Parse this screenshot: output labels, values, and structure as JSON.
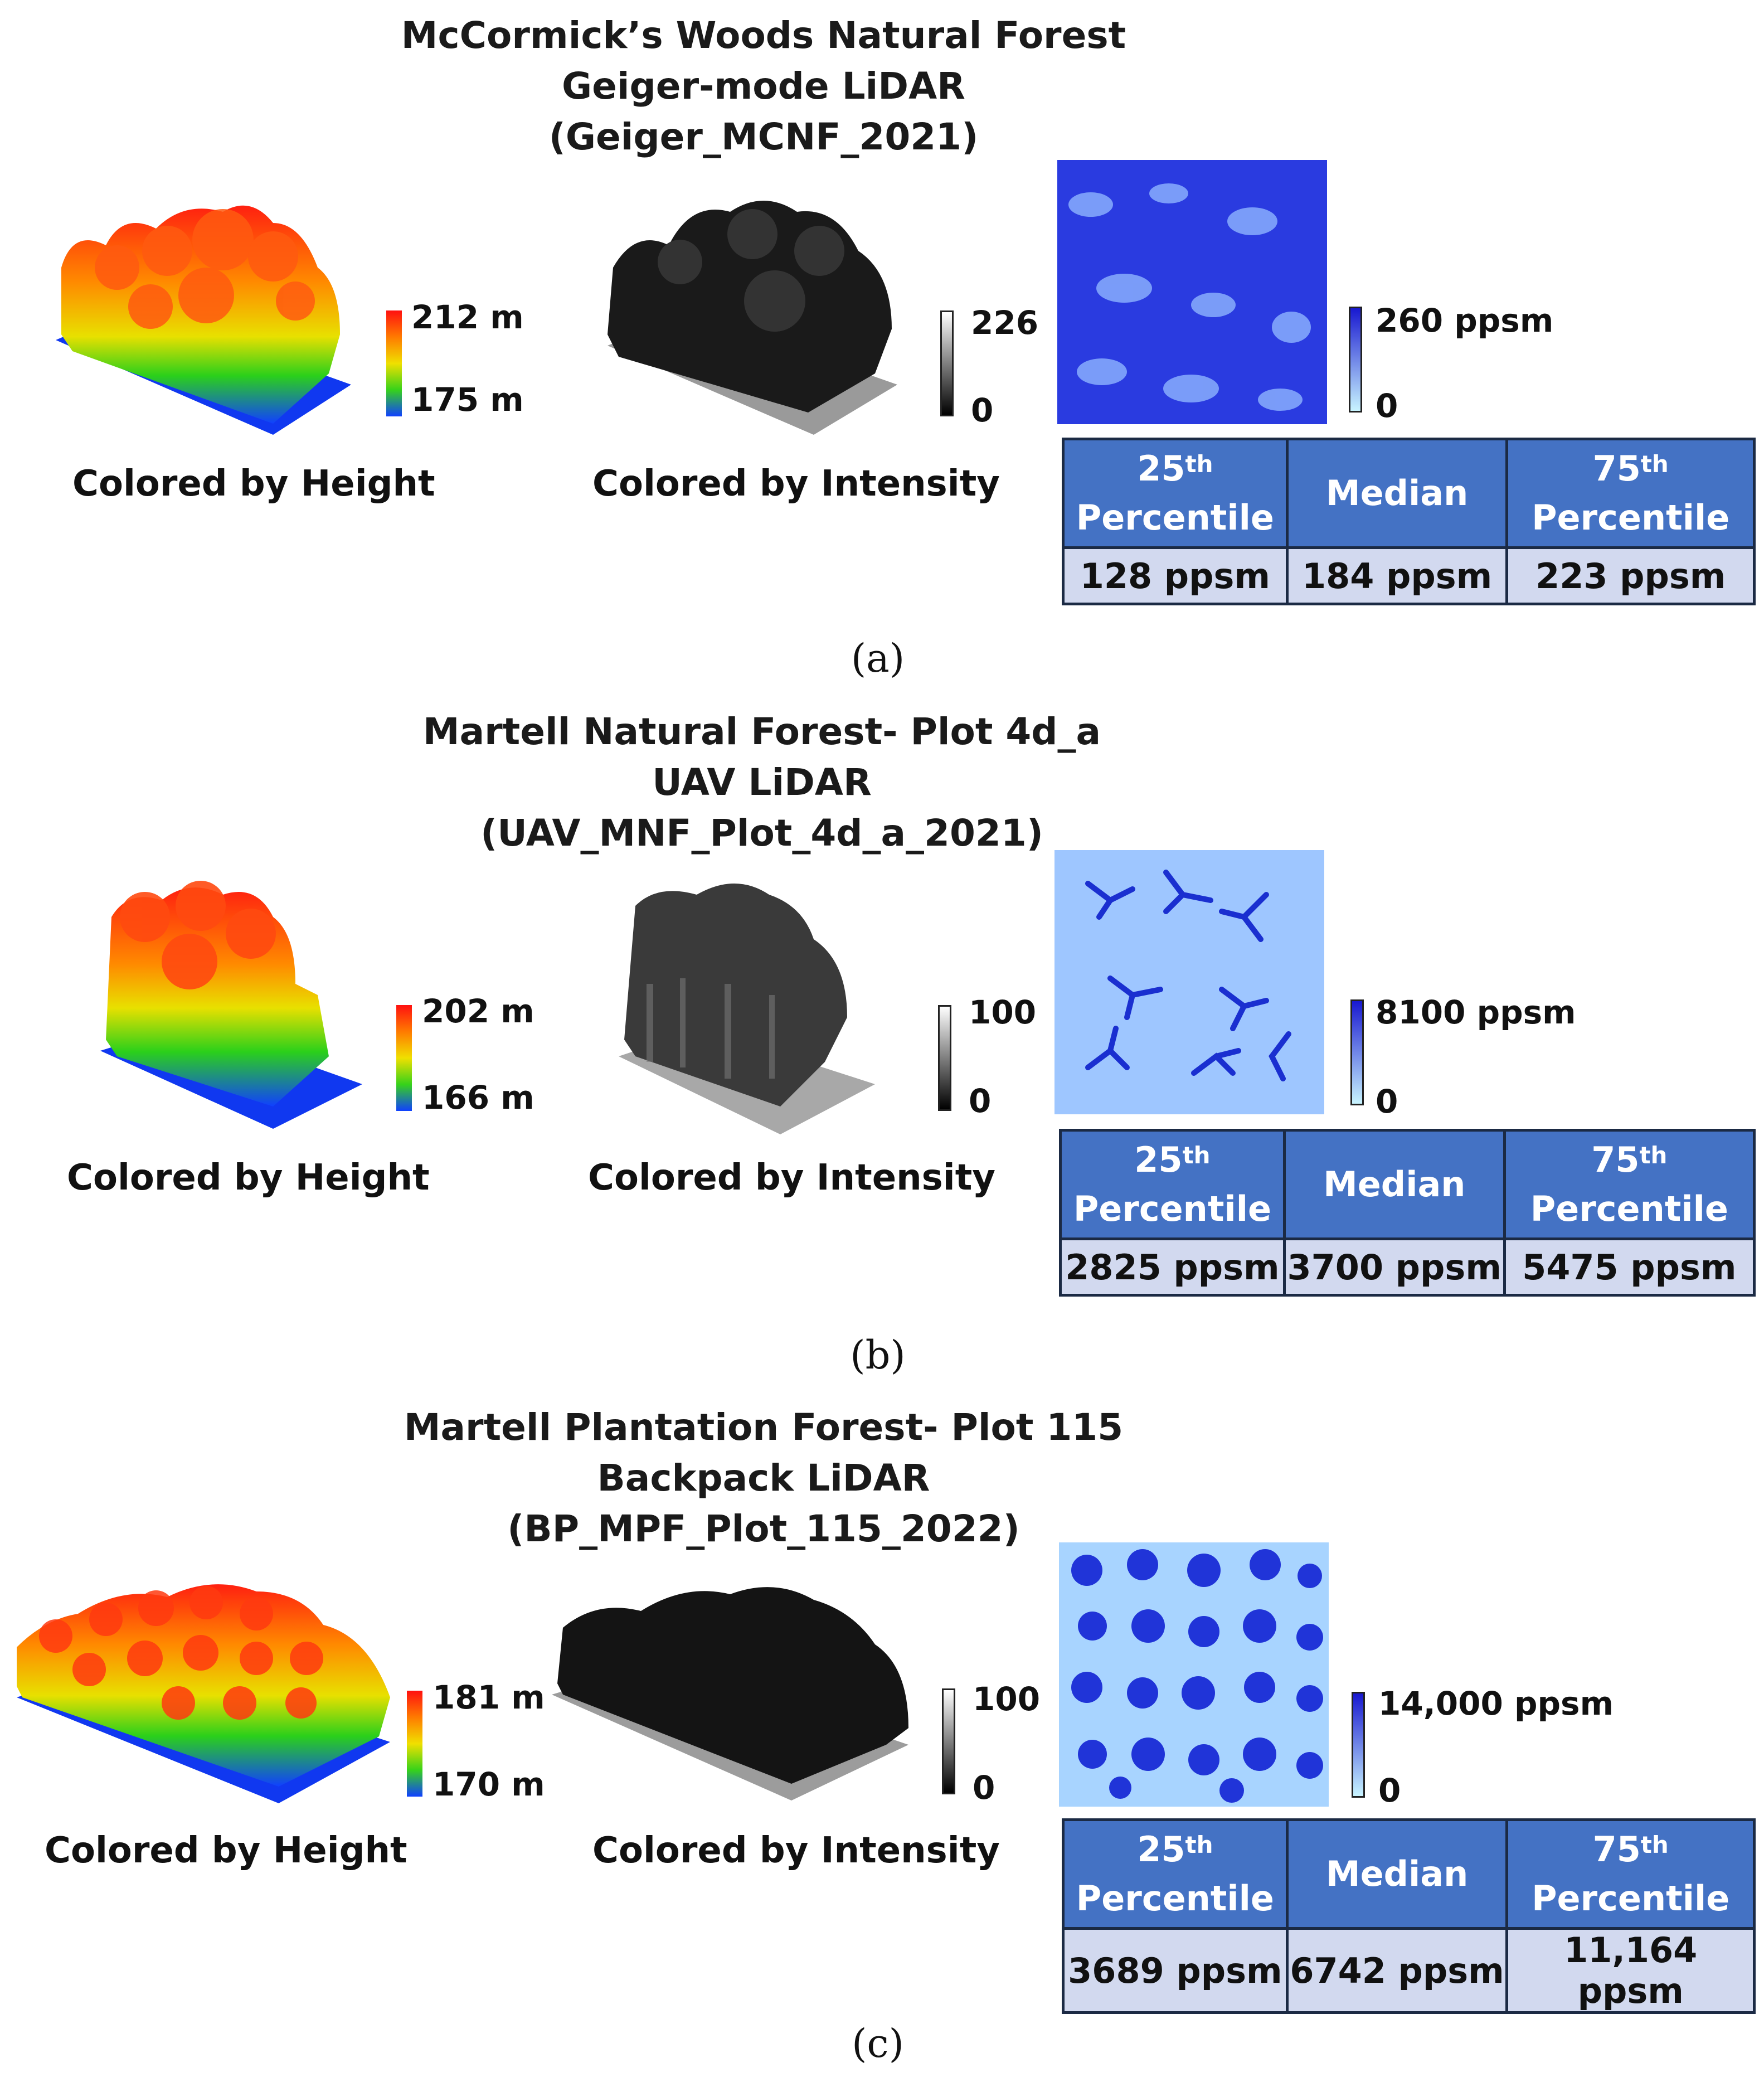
{
  "panels": [
    {
      "id": "a",
      "title": [
        "McCormick’s Woods Natural Forest",
        "Geiger-mode LiDAR",
        "(Geiger_MCNF_2021)"
      ],
      "height_scale": {
        "max": "212 m",
        "min": "175 m"
      },
      "intensity_scale": {
        "max": "226",
        "min": "0"
      },
      "density_scale": {
        "max": "260 ppsm",
        "min": "0"
      },
      "height_caption": "Colored by Height",
      "intensity_caption": "Colored by Intensity",
      "stats": {
        "p25_num": "25",
        "p25_sup": "th",
        "p25_word": "Percentile",
        "median": "Median",
        "p75_num": "75",
        "p75_sup": "th",
        "p75_word": "Percentile",
        "v25": "128 ppsm",
        "vmed": "184 ppsm",
        "v75": "223 ppsm"
      },
      "label": "(a)"
    },
    {
      "id": "b",
      "title": [
        "Martell Natural Forest- Plot 4d_a",
        "UAV LiDAR",
        "(UAV_MNF_Plot_4d_a_2021)"
      ],
      "height_scale": {
        "max": "202 m",
        "min": "166 m"
      },
      "intensity_scale": {
        "max": "100",
        "min": "0"
      },
      "density_scale": {
        "max": "8100 ppsm",
        "min": "0"
      },
      "height_caption": "Colored by Height",
      "intensity_caption": "Colored by Intensity",
      "stats": {
        "p25_num": "25",
        "p25_sup": "th",
        "p25_word": "Percentile",
        "median": "Median",
        "p75_num": "75",
        "p75_sup": "th",
        "p75_word": "Percentile",
        "v25": "2825 ppsm",
        "vmed": "3700 ppsm",
        "v75": "5475 ppsm"
      },
      "label": "(b)"
    },
    {
      "id": "c",
      "title": [
        "Martell Plantation Forest- Plot 115",
        "Backpack LiDAR",
        "(BP_MPF_Plot_115_2022)"
      ],
      "height_scale": {
        "max": "181 m",
        "min": "170 m"
      },
      "intensity_scale": {
        "max": "100",
        "min": "0"
      },
      "density_scale": {
        "max": "14,000 ppsm",
        "min": "0"
      },
      "height_caption": "Colored by Height",
      "intensity_caption": "Colored by Intensity",
      "stats": {
        "p25_num": "25",
        "p25_sup": "th",
        "p25_word": "Percentile",
        "median": "Median",
        "p75_num": "75",
        "p75_sup": "th",
        "p75_word": "Percentile",
        "v25": "3689 ppsm",
        "vmed": "6742 ppsm",
        "v75": "11,164 ppsm"
      },
      "label": "(c)"
    }
  ],
  "colors": {
    "table_header": "#4472c4",
    "table_value": "#d2d9ef",
    "density_dark": "#1818d0",
    "density_light": "#c8f4ff"
  }
}
